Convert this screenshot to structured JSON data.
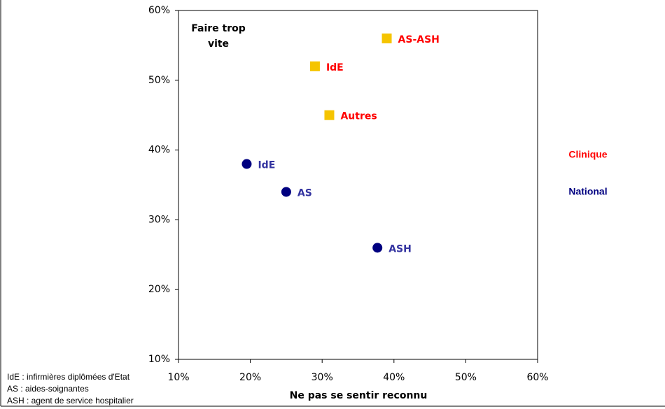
{
  "chart_data": {
    "type": "scatter",
    "annotation": "Faire trop vite",
    "xlabel": "Ne pas se sentir reconnu",
    "xlim": [
      10,
      60
    ],
    "xticks": [
      {
        "value": 10,
        "label": "10%"
      },
      {
        "value": 20,
        "label": "20%"
      },
      {
        "value": 30,
        "label": "30%"
      },
      {
        "value": 40,
        "label": "40%"
      },
      {
        "value": 50,
        "label": "50%"
      },
      {
        "value": 60,
        "label": "60%"
      }
    ],
    "ylim": [
      10,
      60
    ],
    "yticks": [
      {
        "value": 10,
        "label": "10%"
      },
      {
        "value": 20,
        "label": "20%"
      },
      {
        "value": 30,
        "label": "30%"
      },
      {
        "value": 40,
        "label": "40%"
      },
      {
        "value": 50,
        "label": "50%"
      },
      {
        "value": 60,
        "label": "60%"
      }
    ],
    "grid": false,
    "series": [
      {
        "name": "Clinique",
        "color": "#f5c400",
        "legend_color": "#ff0000",
        "label_color": "#ff0000",
        "marker": "square",
        "labels": [
          "IdE",
          "AS-ASH",
          "Autres"
        ],
        "x": [
          29,
          39,
          31
        ],
        "values": [
          52,
          56,
          45
        ]
      },
      {
        "name": "National",
        "color": "#000080",
        "legend_color": "#000080",
        "label_color": "#3333a0",
        "marker": "circle",
        "labels": [
          "IdE",
          "AS",
          "ASH"
        ],
        "x": [
          19.5,
          25,
          37.7
        ],
        "values": [
          38,
          34,
          26
        ]
      }
    ],
    "notes": [
      "IdE : infirmières diplômées d'Etat",
      "AS : aides-soignantes",
      "ASH : agent de service hospitalier"
    ]
  }
}
